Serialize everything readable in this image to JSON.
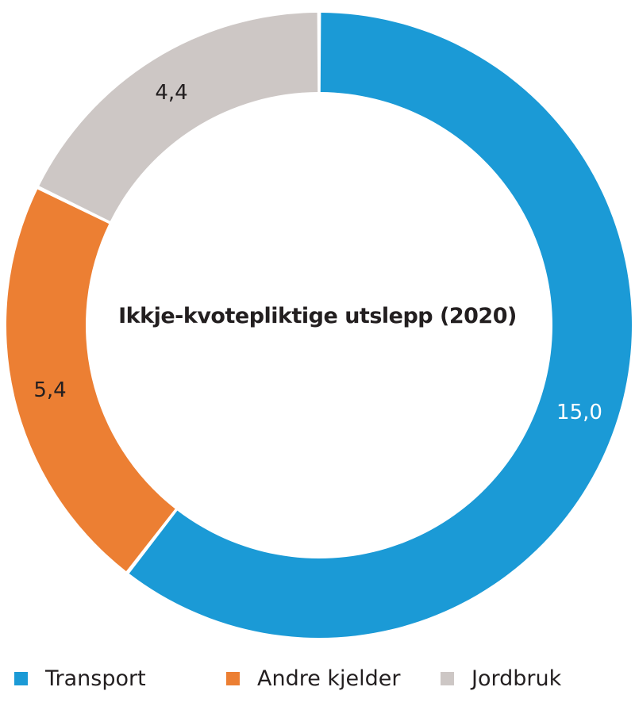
{
  "chart_data": {
    "type": "pie",
    "variant": "donut",
    "title": "Ikkje-kvotepliktige utslepp (2020)",
    "categories": [
      "Transport",
      "Andre kjelder",
      "Jordbruk"
    ],
    "values": [
      15.0,
      5.4,
      4.4
    ],
    "value_labels": [
      "15,0",
      "5,4",
      "4,4"
    ],
    "colors": [
      "#1b9ad6",
      "#ec7f33",
      "#cdc7c5"
    ],
    "start_angle_deg": 0,
    "direction": "clockwise",
    "legend_position": "bottom"
  },
  "labels": {
    "title": "Ikkje-kvotepliktige utslepp (2020)",
    "transport_value": "15,0",
    "andre_value": "5,4",
    "jordbruk_value": "4,4"
  },
  "legend": {
    "items": [
      {
        "label": "Transport",
        "color": "#1b9ad6"
      },
      {
        "label": "Andre kjelder",
        "color": "#ec7f33"
      },
      {
        "label": "Jordbruk",
        "color": "#cdc7c5"
      }
    ]
  }
}
